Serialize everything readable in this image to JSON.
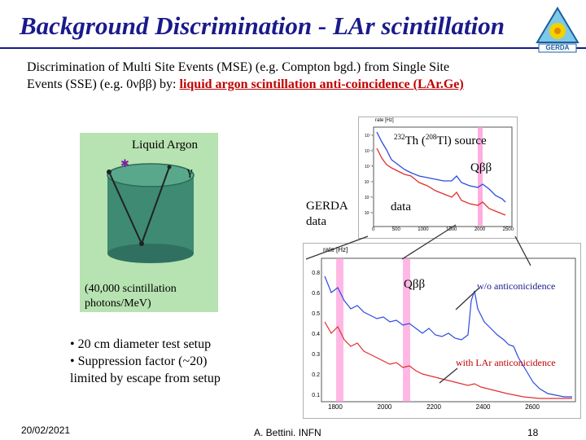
{
  "title": "Background Discrimination - LAr scintillation",
  "intro": {
    "line1": "Discrimination of Multi Site Events (MSE) (e.g. Compton bgd.) from Single Site",
    "line2_prefix": "Events (SSE) (e.g. 0νββ) by:",
    "line2_highlight": "liquid argon scintillation anti-coincidence (LAr.Ge)"
  },
  "panel": {
    "liquid_argon": "Liquid Argon",
    "gamma": "γ",
    "photons": "(40,000 scintillation photons/MeV)"
  },
  "labels": {
    "source_sup1": "232",
    "source_th": "Th (",
    "source_sup2": "208",
    "source_tail": "Tl) source",
    "qbb_upper": "Qββ",
    "gerda_data": "GERDA data",
    "data": "data",
    "qbb_lower": "Qββ",
    "wo_anti": "w/o anticonicidence",
    "with_anti": "with LAr anticonicidence"
  },
  "plots": {
    "upper": {
      "ylabel": "rate [Hz]",
      "yticks": [
        "10⁻¹",
        "10⁻²",
        "10⁻³",
        "10⁻⁴",
        "10⁻⁵",
        "10⁻⁶"
      ],
      "xticks": [
        "0",
        "500",
        "1000",
        "1500",
        "2000",
        "2500"
      ]
    },
    "lower": {
      "ylabel": "rate [Hz]",
      "yticks": [
        "0.8",
        "0.6",
        "0.5",
        "0.4",
        "0.3",
        "0.2",
        "0.1"
      ],
      "xticks": [
        "1800",
        "2000",
        "2200",
        "2400",
        "2600"
      ]
    }
  },
  "bullets": [
    "• 20 cm diameter test setup",
    "• Suppression factor (~20)",
    "limited by escape from setup"
  ],
  "logo_text": "GERDA",
  "footer": {
    "date": "20/02/2021",
    "author": "A. Bettini. INFN",
    "page": "18"
  },
  "colors": {
    "title": "#1a1a8c",
    "highlight": "#c00000",
    "panel": "#b7e2b1",
    "cylinder": "#3e8a72",
    "blue_trace": "#2b4be0",
    "red_trace": "#e03030",
    "qbb_band": "#ff9ad8"
  }
}
